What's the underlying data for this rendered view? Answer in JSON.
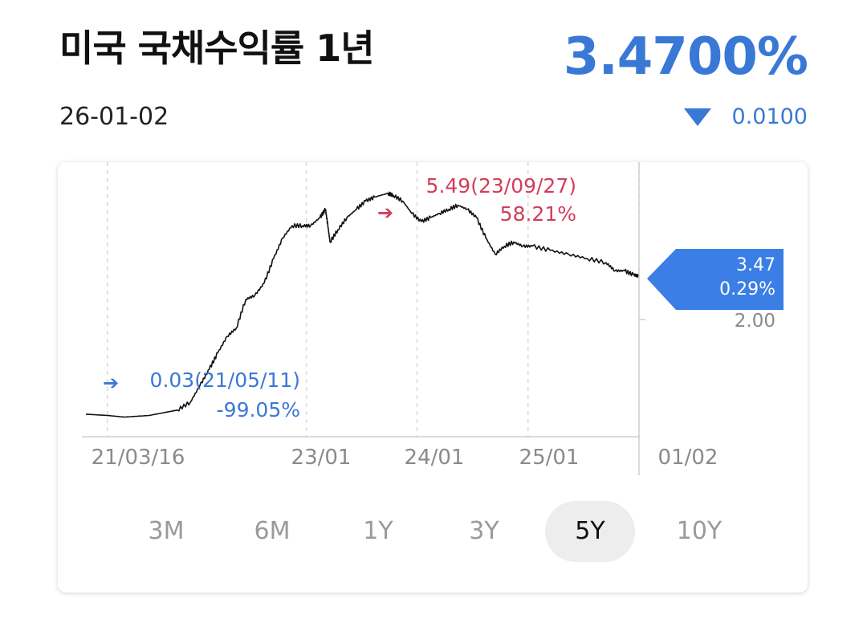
{
  "header": {
    "title": "미국 국채수익률 1년",
    "date": "26-01-02",
    "price": "3.4700%",
    "change": "0.0100",
    "change_direction": "down",
    "accent_color": "#3a78d6",
    "high_color": "#d43c5a"
  },
  "chart_data": {
    "type": "line",
    "title": "",
    "x_tick_labels": [
      "21/03/16",
      "23/01",
      "24/01",
      "25/01",
      "01/02"
    ],
    "y_tick_labels": [
      "2.00"
    ],
    "y_ticks": [
      2.0
    ],
    "ylim": [
      -0.45,
      6.25
    ],
    "x_range": [
      "2021-01-04",
      "2026-01-02"
    ],
    "grid": "vertical-dashed",
    "x": [
      "2021-01-04",
      "2021-03-16",
      "2021-05-11",
      "2021-08-01",
      "2021-11-01",
      "2021-12-15",
      "2022-01-15",
      "2022-02-15",
      "2022-03-15",
      "2022-04-15",
      "2022-05-15",
      "2022-06-15",
      "2022-07-15",
      "2022-08-15",
      "2022-09-15",
      "2022-10-15",
      "2022-11-15",
      "2022-12-20",
      "2023-01-15",
      "2023-02-15",
      "2023-03-05",
      "2023-03-13",
      "2023-03-20",
      "2023-04-15",
      "2023-05-15",
      "2023-06-15",
      "2023-07-15",
      "2023-08-15",
      "2023-09-27",
      "2023-10-15",
      "2023-11-15",
      "2023-12-15",
      "2024-01-15",
      "2024-02-15",
      "2024-03-15",
      "2024-04-15",
      "2024-05-15",
      "2024-06-15",
      "2024-07-15",
      "2024-08-15",
      "2024-09-15",
      "2024-10-15",
      "2024-11-15",
      "2024-12-15",
      "2025-01-15",
      "2025-03-15",
      "2025-05-15",
      "2025-07-15",
      "2025-09-15",
      "2025-10-15",
      "2025-11-15",
      "2025-12-15",
      "2026-01-02"
    ],
    "values": [
      0.1,
      0.07,
      0.03,
      0.07,
      0.2,
      0.4,
      0.8,
      1.2,
      1.6,
      2.0,
      2.2,
      2.9,
      3.0,
      3.3,
      3.9,
      4.4,
      4.7,
      4.7,
      4.7,
      4.9,
      5.1,
      4.7,
      4.3,
      4.6,
      4.9,
      5.1,
      5.3,
      5.4,
      5.49,
      5.44,
      5.3,
      5.0,
      4.8,
      4.9,
      5.0,
      5.1,
      5.2,
      5.1,
      4.9,
      4.4,
      4.0,
      4.2,
      4.3,
      4.2,
      4.2,
      4.1,
      4.0,
      3.9,
      3.8,
      3.6,
      3.6,
      3.5,
      3.47
    ],
    "low_annotation": {
      "label": "0.03(21/05/11)",
      "pct": "-99.05%"
    },
    "high_annotation": {
      "label": "5.49(23/09/27)",
      "pct": "58.21%"
    },
    "current_marker": {
      "value": "3.47",
      "pct": "0.29%"
    }
  },
  "periods": [
    {
      "label": "3M",
      "active": false
    },
    {
      "label": "6M",
      "active": false
    },
    {
      "label": "1Y",
      "active": false
    },
    {
      "label": "3Y",
      "active": false
    },
    {
      "label": "5Y",
      "active": true
    },
    {
      "label": "10Y",
      "active": false
    }
  ]
}
